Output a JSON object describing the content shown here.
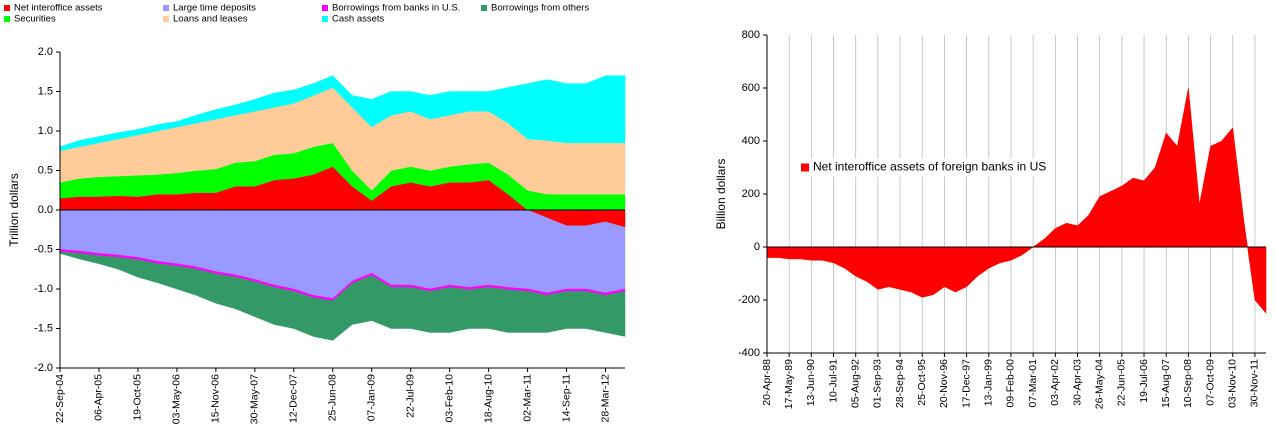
{
  "chart_data": [
    {
      "type": "area",
      "stacked": true,
      "y_label": "Trillion dollars",
      "legend": "top",
      "grid": false,
      "categories": [
        "22-Sep-04",
        null,
        "06-Apr-05",
        null,
        "19-Oct-05",
        null,
        "03-May-06",
        null,
        "15-Nov-06",
        null,
        "30-May-07",
        null,
        "12-Dec-07",
        null,
        "25-Jun-08",
        null,
        "07-Jan-09",
        null,
        "22-Jul-09",
        null,
        "03-Feb-10",
        null,
        "18-Aug-10",
        null,
        "02-Mar-11",
        null,
        "14-Sep-11",
        null,
        "28-Mar-12",
        null
      ],
      "ylim": [
        -2.0,
        2.0
      ],
      "yticks": [
        {
          "value": -2.0,
          "label": "-2.0"
        },
        {
          "value": -1.5,
          "label": "-1.5"
        },
        {
          "value": -1.0,
          "label": "-1.0"
        },
        {
          "value": -0.5,
          "label": "-0.5"
        },
        {
          "value": 0,
          "label": "0.0"
        },
        {
          "value": 0.5,
          "label": "0.5"
        },
        {
          "value": 1.0,
          "label": "1.0"
        },
        {
          "value": 1.5,
          "label": "1.5"
        },
        {
          "value": 2.0,
          "label": "2.0"
        }
      ],
      "series": [
        {
          "name": "Net interoffice assets",
          "color": "#ff0000",
          "values": [
            0.15,
            0.17,
            0.17,
            0.18,
            0.17,
            0.2,
            0.2,
            0.22,
            0.22,
            0.3,
            0.3,
            0.38,
            0.4,
            0.45,
            0.55,
            0.3,
            0.12,
            0.3,
            0.35,
            0.3,
            0.35,
            0.35,
            0.38,
            0.2,
            0.0,
            -0.1,
            -0.2,
            -0.2,
            -0.15,
            -0.22
          ]
        },
        {
          "name": "Large time deposits",
          "color": "#9999ff",
          "values": [
            -0.5,
            -0.52,
            -0.55,
            -0.57,
            -0.6,
            -0.65,
            -0.68,
            -0.72,
            -0.78,
            -0.82,
            -0.88,
            -0.95,
            -1.0,
            -1.08,
            -1.12,
            -0.9,
            -0.8,
            -0.95,
            -0.95,
            -1.0,
            -0.95,
            -0.98,
            -0.95,
            -0.98,
            -1.0,
            -0.95,
            -0.8,
            -0.8,
            -0.9,
            -0.78
          ]
        },
        {
          "name": "Borrowings from banks in U.S.",
          "color": "#ff00ff",
          "values": [
            -0.03,
            -0.03,
            -0.03,
            -0.03,
            -0.03,
            -0.03,
            -0.03,
            -0.03,
            -0.03,
            -0.03,
            -0.03,
            -0.03,
            -0.03,
            -0.03,
            -0.03,
            -0.03,
            -0.03,
            -0.03,
            -0.03,
            -0.03,
            -0.03,
            -0.03,
            -0.03,
            -0.03,
            -0.03,
            -0.03,
            -0.03,
            -0.03,
            -0.03,
            -0.03
          ]
        },
        {
          "name": "Borrowings from others",
          "color": "#339966",
          "values": [
            -0.02,
            -0.07,
            -0.1,
            -0.15,
            -0.22,
            -0.24,
            -0.29,
            -0.33,
            -0.37,
            -0.4,
            -0.44,
            -0.47,
            -0.47,
            -0.49,
            -0.5,
            -0.52,
            -0.57,
            -0.52,
            -0.52,
            -0.52,
            -0.57,
            -0.49,
            -0.52,
            -0.54,
            -0.52,
            -0.47,
            -0.47,
            -0.47,
            -0.47,
            -0.57
          ]
        },
        {
          "name": "Securities",
          "color": "#00ff00",
          "values": [
            0.2,
            0.23,
            0.25,
            0.25,
            0.27,
            0.25,
            0.27,
            0.28,
            0.3,
            0.3,
            0.32,
            0.32,
            0.32,
            0.35,
            0.3,
            0.2,
            0.13,
            0.2,
            0.2,
            0.2,
            0.2,
            0.23,
            0.22,
            0.25,
            0.25,
            0.2,
            0.2,
            0.2,
            0.2,
            0.2
          ]
        },
        {
          "name": "Loans and leases",
          "color": "#ffcc99",
          "values": [
            0.4,
            0.4,
            0.43,
            0.47,
            0.51,
            0.55,
            0.58,
            0.6,
            0.63,
            0.6,
            0.63,
            0.6,
            0.63,
            0.65,
            0.7,
            0.8,
            0.8,
            0.7,
            0.7,
            0.65,
            0.65,
            0.67,
            0.65,
            0.65,
            0.65,
            0.68,
            0.65,
            0.65,
            0.65,
            0.65
          ]
        },
        {
          "name": "Cash assets",
          "color": "#00ffff",
          "values": [
            0.05,
            0.08,
            0.08,
            0.08,
            0.07,
            0.08,
            0.07,
            0.1,
            0.12,
            0.13,
            0.15,
            0.18,
            0.17,
            0.15,
            0.15,
            0.15,
            0.35,
            0.3,
            0.25,
            0.3,
            0.3,
            0.25,
            0.25,
            0.45,
            0.7,
            0.77,
            0.75,
            0.75,
            0.85,
            0.85
          ]
        }
      ]
    },
    {
      "type": "area",
      "stacked": false,
      "y_label": "Billion dollars",
      "legend": "center-left",
      "grid": "x",
      "categories": [
        "20-Apr-88",
        null,
        "17-May-89",
        null,
        "13-Jun-90",
        null,
        "10-Jul-91",
        null,
        "05-Aug-92",
        null,
        "01-Sep-93",
        null,
        "28-Sep-94",
        null,
        "25-Oct-95",
        null,
        "20-Nov-96",
        null,
        "17-Dec-97",
        null,
        "13-Jan-99",
        null,
        "09-Feb-00",
        null,
        "07-Mar-01",
        null,
        "03-Apr-02",
        null,
        "30-Apr-03",
        null,
        "26-May-04",
        null,
        "22-Jun-05",
        null,
        "19-Jul-06",
        null,
        "15-Aug-07",
        null,
        "10-Sep-08",
        null,
        "07-Oct-09",
        null,
        "03-Nov-10",
        null,
        "30-Nov-11",
        null
      ],
      "ylim": [
        -400,
        800
      ],
      "yticks": [
        -400,
        -200,
        0,
        200,
        400,
        600,
        800
      ],
      "series": [
        {
          "name": "Net interoffice assets of foreign banks in US",
          "color": "#ff0000",
          "values": [
            -40,
            -40,
            -45,
            -45,
            -50,
            -50,
            -60,
            -80,
            -110,
            -130,
            -160,
            -150,
            -160,
            -170,
            -190,
            -180,
            -150,
            -170,
            -150,
            -110,
            -80,
            -60,
            -50,
            -30,
            0,
            30,
            70,
            90,
            80,
            120,
            190,
            210,
            230,
            260,
            250,
            300,
            430,
            380,
            600,
            160,
            380,
            400,
            450,
            100,
            -200,
            -250
          ]
        }
      ]
    }
  ]
}
